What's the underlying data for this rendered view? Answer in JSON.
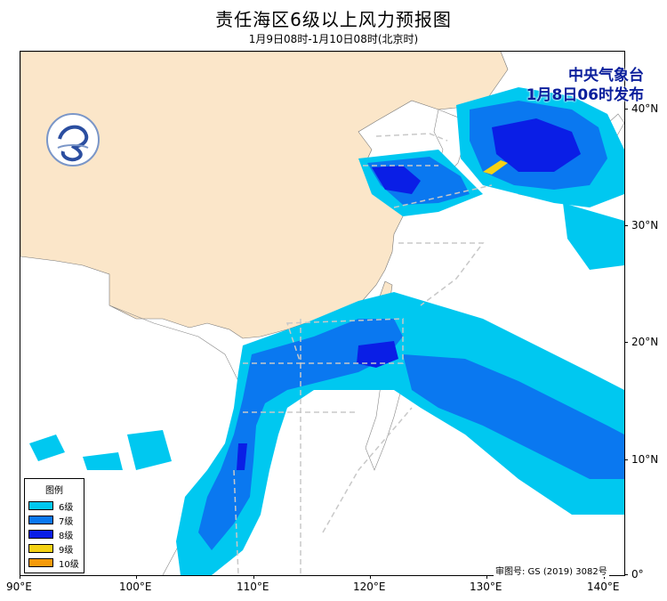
{
  "title": "责任海区6级以上风力预报图",
  "subtitle": "1月9日08时-1月10日08时(北京时)",
  "issuer": {
    "line1": "中央气象台",
    "line2": "1月8日06时发布"
  },
  "approval": "审图号: GS (2019) 3082号",
  "axes": {
    "x_ticks": [
      "90°E",
      "100°E",
      "110°E",
      "120°E",
      "130°E",
      "140°E"
    ],
    "y_ticks": [
      "40°N",
      "30°N",
      "20°N",
      "10°N",
      "0°"
    ],
    "lon_range": [
      90,
      142
    ],
    "lat_range": [
      0,
      45
    ]
  },
  "legend": {
    "title": "图例",
    "items": [
      {
        "label": "6级",
        "color": "#00c8f0"
      },
      {
        "label": "7级",
        "color": "#0a78f0"
      },
      {
        "label": "8级",
        "color": "#0a1ee6"
      },
      {
        "label": "9级",
        "color": "#f5d214"
      },
      {
        "label": "10级",
        "color": "#f59a0a"
      }
    ]
  },
  "colors": {
    "land_china": "#fbe6c9",
    "land_other": "#ffffff",
    "sea": "#ffffff",
    "zone_line": "#c8c8c8"
  },
  "logo": "cma-logo-icon"
}
